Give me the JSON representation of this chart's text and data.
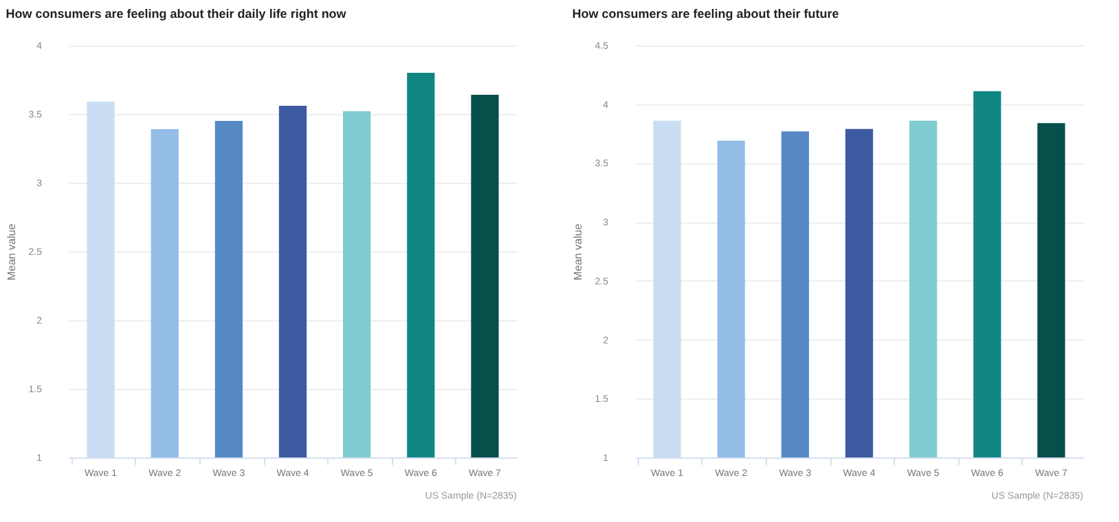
{
  "chart_data": [
    {
      "type": "bar",
      "title": "How consumers are feeling about their daily life right now",
      "ylabel": "Mean value",
      "categories": [
        "Wave 1",
        "Wave 2",
        "Wave 3",
        "Wave 4",
        "Wave 5",
        "Wave 6",
        "Wave 7"
      ],
      "values": [
        3.59,
        3.39,
        3.45,
        3.56,
        3.52,
        3.8,
        3.64
      ],
      "colors": [
        "#cadef3",
        "#94bde8",
        "#5689c6",
        "#3c5a9f",
        "#80ccd1",
        "#118784",
        "#064f4b"
      ],
      "ylim": [
        1,
        4
      ],
      "yticks": [
        1,
        1.5,
        2,
        2.5,
        3,
        3.5,
        4
      ],
      "grid": "y",
      "annotations": [
        "US Sample (N=2835)"
      ]
    },
    {
      "type": "bar",
      "title": "How consumers are feeling about their future",
      "ylabel": "Mean value",
      "categories": [
        "Wave 1",
        "Wave 2",
        "Wave 3",
        "Wave 4",
        "Wave 5",
        "Wave 6",
        "Wave 7"
      ],
      "values": [
        3.86,
        3.69,
        3.77,
        3.79,
        3.86,
        4.11,
        3.84
      ],
      "colors": [
        "#cadef3",
        "#94bde8",
        "#5689c6",
        "#3c5a9f",
        "#80ccd1",
        "#118784",
        "#064f4b"
      ],
      "ylim": [
        1,
        4.5
      ],
      "yticks": [
        1,
        1.5,
        2,
        2.5,
        3,
        3.5,
        4,
        4.5
      ],
      "grid": "y",
      "annotations": [
        "US Sample (N=2835)"
      ]
    }
  ]
}
